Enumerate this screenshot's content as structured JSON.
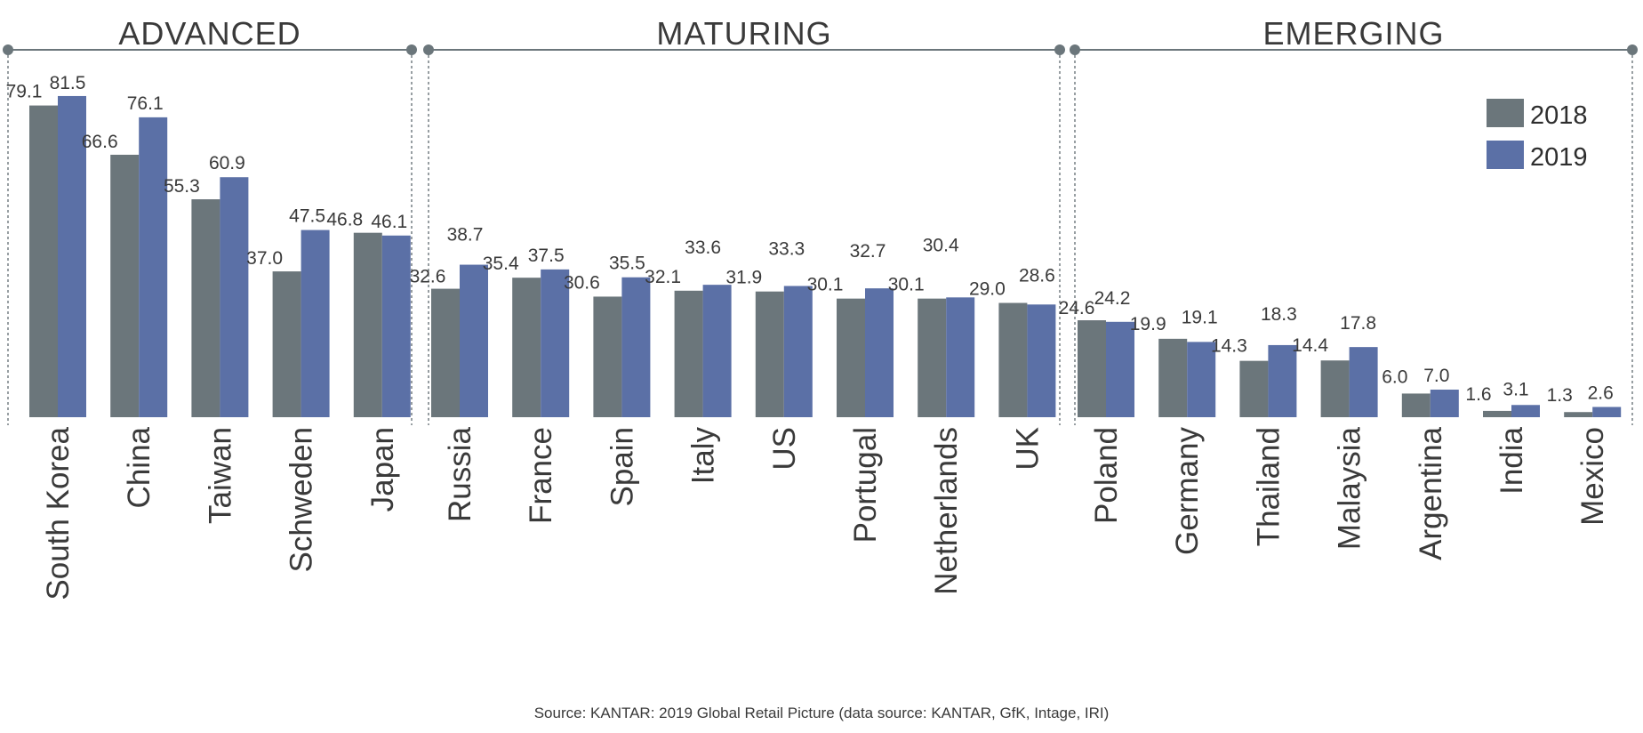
{
  "chart_data": {
    "type": "bar",
    "categories": [
      "South Korea",
      "China",
      "Taiwan",
      "Schweden",
      "Japan",
      "Russia",
      "France",
      "Spain",
      "Italy",
      "US",
      "Portugal",
      "Netherlands",
      "UK",
      "Poland",
      "Germany",
      "Thailand",
      "Malaysia",
      "Argentina",
      "India",
      "Mexico"
    ],
    "series": [
      {
        "name": "2018",
        "color": "#6b767b",
        "values": [
          79.1,
          66.6,
          55.3,
          37.0,
          46.8,
          32.6,
          35.4,
          30.6,
          32.1,
          31.9,
          30.1,
          30.1,
          29.0,
          24.6,
          19.9,
          14.3,
          14.4,
          6.0,
          1.6,
          1.3
        ]
      },
      {
        "name": "2019",
        "color": "#5b70a6",
        "values": [
          81.5,
          76.1,
          60.9,
          47.5,
          46.1,
          38.7,
          37.5,
          35.5,
          33.6,
          33.3,
          32.7,
          30.4,
          28.6,
          24.2,
          19.1,
          18.3,
          17.8,
          7.0,
          3.1,
          2.6
        ]
      }
    ],
    "value_labels": {
      "2018": [
        "79.1",
        "66.6",
        "55.3",
        "37.0",
        "46.8",
        "32.6",
        "35.4",
        "30.6",
        "32.1",
        "31.9",
        "30.1",
        "30.1",
        "29.0",
        "24.6",
        "19.9",
        "14.3",
        "14.4",
        "6.0",
        "1.6",
        "1.3"
      ],
      "2019": [
        "81.5",
        "76.1",
        "60.9",
        "47.5",
        "46.1",
        "38.7",
        "37.5",
        "35.5",
        "33.6",
        "33.3",
        "32.7",
        "30.4",
        "28.6",
        "24.2",
        "19.1",
        "18.3",
        "17.8",
        "7.0",
        "3.1",
        "2.6"
      ]
    },
    "groups": [
      {
        "label": "ADVANCED",
        "categories": [
          "South Korea",
          "China",
          "Taiwan",
          "Schweden",
          "Japan"
        ]
      },
      {
        "label": "MATURING",
        "categories": [
          "Russia",
          "France",
          "Spain",
          "Italy",
          "US",
          "Portugal",
          "Netherlands",
          "UK"
        ]
      },
      {
        "label": "EMERGING",
        "categories": [
          "Poland",
          "Germany",
          "Thailand",
          "Malaysia",
          "Argentina",
          "India",
          "Mexico"
        ]
      }
    ],
    "ylim": [
      0,
      85
    ],
    "grid": false,
    "legend": {
      "position": "top-right",
      "entries": [
        "2018",
        "2019"
      ]
    },
    "source": "Source: KANTAR: 2019 Global Retail Picture  (data source: KANTAR, GfK, Intage, IRI)"
  },
  "colors": {
    "line": "#6b767b",
    "text": "#3a3a3a"
  }
}
